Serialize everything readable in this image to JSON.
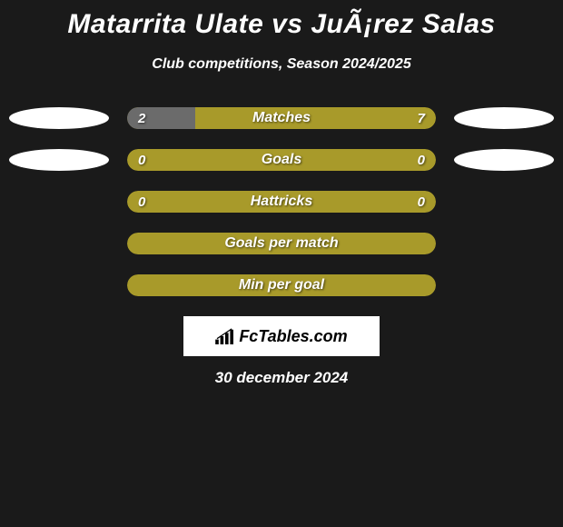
{
  "title": "Matarrita Ulate vs JuÃ¡rez Salas",
  "subtitle": "Club competitions, Season 2024/2025",
  "date": "30 december 2024",
  "logo_text": "FcTables.com",
  "colors": {
    "background": "#1a1a1a",
    "bar_olive": "#a89a2a",
    "bar_dark": "#6b6b6b",
    "oval": "#ffffff",
    "text": "#ffffff"
  },
  "rows": [
    {
      "label": "Matches",
      "left_value": "2",
      "right_value": "7",
      "left_percent": 22,
      "bg_color": "#a89a2a",
      "fill_color": "#6b6b6b",
      "show_ovals": true,
      "show_values": true
    },
    {
      "label": "Goals",
      "left_value": "0",
      "right_value": "0",
      "left_percent": 0,
      "bg_color": "#a89a2a",
      "fill_color": "#6b6b6b",
      "show_ovals": true,
      "show_values": true
    },
    {
      "label": "Hattricks",
      "left_value": "0",
      "right_value": "0",
      "left_percent": 0,
      "bg_color": "#a89a2a",
      "fill_color": "#6b6b6b",
      "show_ovals": false,
      "show_values": true
    },
    {
      "label": "Goals per match",
      "left_value": "",
      "right_value": "",
      "left_percent": 0,
      "bg_color": "#a89a2a",
      "fill_color": "#6b6b6b",
      "show_ovals": false,
      "show_values": false
    },
    {
      "label": "Min per goal",
      "left_value": "",
      "right_value": "",
      "left_percent": 0,
      "bg_color": "#a89a2a",
      "fill_color": "#6b6b6b",
      "show_ovals": false,
      "show_values": false
    }
  ]
}
